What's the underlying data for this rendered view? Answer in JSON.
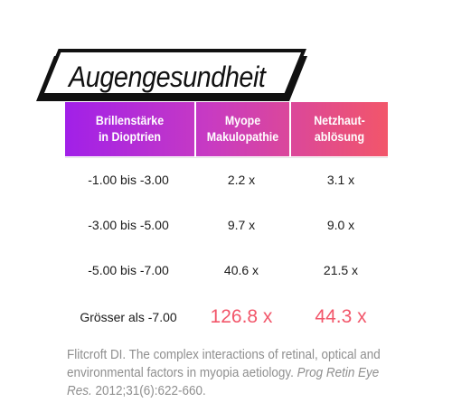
{
  "title": "Augengesundheit",
  "colors": {
    "gradient_start": "#a120e8",
    "gradient_end": "#f2566a",
    "highlight": "#f2566a",
    "citation": "#8f8f8f"
  },
  "table": {
    "headers": [
      "Brillenstärke\nin Dioptrien",
      "Myope\nMakulopathie",
      "Netzhaut-\nablösung"
    ],
    "rows": [
      [
        "-1.00 bis -3.00",
        "2.2 x",
        "3.1 x"
      ],
      [
        "-3.00 bis -5.00",
        "9.7 x",
        "9.0 x"
      ],
      [
        "-5.00 bis -7.00",
        "40.6 x",
        "21.5 x"
      ],
      [
        "Grösser als -7.00",
        "126.8 x",
        "44.3 x"
      ]
    ]
  },
  "citation": {
    "text": "Flitcroft DI. The complex interactions of retinal, optical and environmental factors in myopia aetiology.",
    "journal": "Prog Retin Eye Res.",
    "ref": " 2012;31(6):622-660."
  }
}
